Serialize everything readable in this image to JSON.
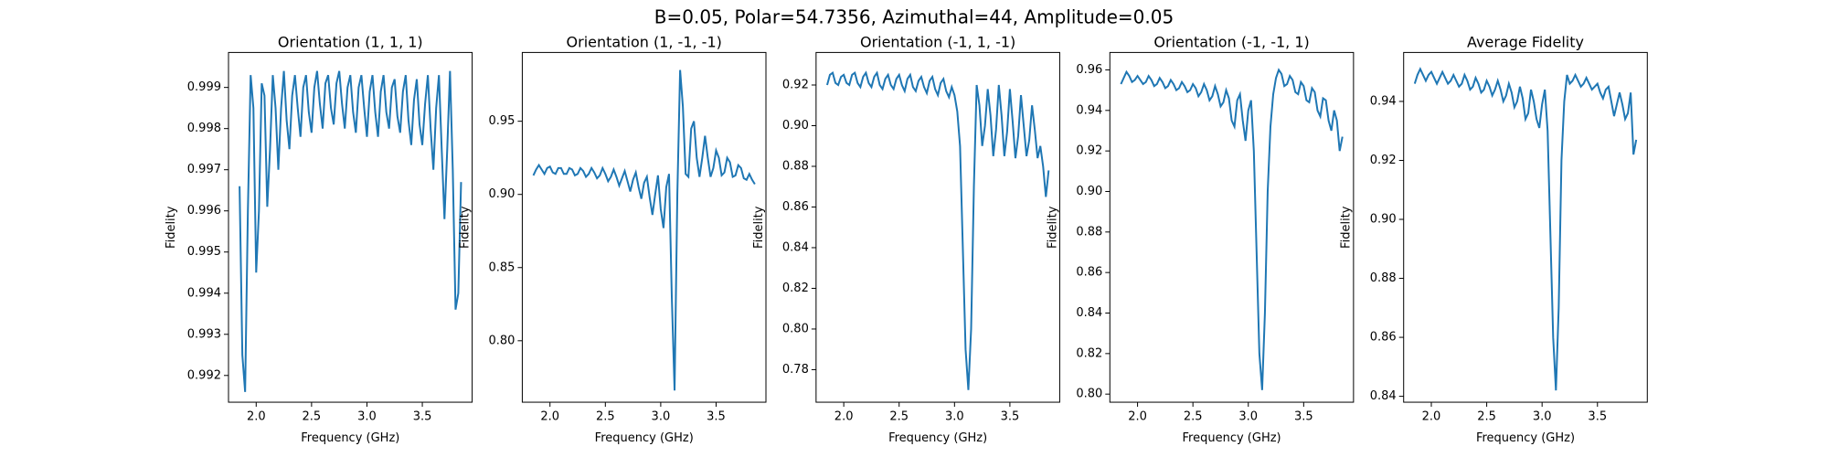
{
  "title": "B=0.05, Polar=54.7356, Azimuthal=44, Amplitude=0.05",
  "chart_data": [
    {
      "type": "line",
      "title": "Orientation (1, 1, 1)",
      "x_label": "Frequency (GHz)",
      "y_label": "Fidelity",
      "color": "#1f77b4",
      "grid": false,
      "x": [
        1.85,
        1.875,
        1.9,
        1.925,
        1.95,
        1.975,
        2,
        2.025,
        2.05,
        2.075,
        2.1,
        2.125,
        2.15,
        2.175,
        2.2,
        2.225,
        2.25,
        2.275,
        2.3,
        2.325,
        2.35,
        2.375,
        2.4,
        2.425,
        2.45,
        2.475,
        2.5,
        2.525,
        2.55,
        2.575,
        2.6,
        2.625,
        2.65,
        2.675,
        2.7,
        2.725,
        2.75,
        2.775,
        2.8,
        2.825,
        2.85,
        2.875,
        2.9,
        2.925,
        2.95,
        2.975,
        3,
        3.025,
        3.05,
        3.075,
        3.1,
        3.125,
        3.15,
        3.175,
        3.2,
        3.225,
        3.25,
        3.275,
        3.3,
        3.325,
        3.35,
        3.375,
        3.4,
        3.425,
        3.45,
        3.475,
        3.5,
        3.525,
        3.55,
        3.575,
        3.6,
        3.625,
        3.65,
        3.675,
        3.7,
        3.725,
        3.75,
        3.775,
        3.8,
        3.825,
        3.85
      ],
      "values": [
        0.9966,
        0.9925,
        0.9916,
        0.996,
        0.9993,
        0.9985,
        0.9945,
        0.996,
        0.9991,
        0.9988,
        0.9961,
        0.9975,
        0.9993,
        0.9985,
        0.997,
        0.9985,
        0.9994,
        0.9982,
        0.9975,
        0.9988,
        0.9993,
        0.9985,
        0.9978,
        0.999,
        0.9993,
        0.9984,
        0.9979,
        0.999,
        0.9994,
        0.9986,
        0.998,
        0.9991,
        0.9993,
        0.9985,
        0.9981,
        0.9991,
        0.9994,
        0.9986,
        0.998,
        0.999,
        0.9993,
        0.9984,
        0.9979,
        0.999,
        0.9993,
        0.9985,
        0.9978,
        0.9989,
        0.9993,
        0.9984,
        0.9978,
        0.9989,
        0.9993,
        0.9984,
        0.998,
        0.999,
        0.9992,
        0.9983,
        0.9979,
        0.9989,
        0.9993,
        0.9982,
        0.9976,
        0.9987,
        0.9992,
        0.9981,
        0.9976,
        0.9986,
        0.9993,
        0.998,
        0.997,
        0.9985,
        0.9993,
        0.9975,
        0.9958,
        0.9975,
        0.9994,
        0.997,
        0.9936,
        0.994,
        0.9967
      ],
      "xlim": [
        1.75,
        3.95
      ],
      "xticks": [
        {
          "value": 2,
          "label": "2.0"
        },
        2.5,
        {
          "value": 3,
          "label": "3.0"
        },
        3.5
      ],
      "ylim": [
        0.99135,
        0.99985
      ],
      "yticks": [
        0.992,
        0.993,
        0.994,
        0.995,
        0.996,
        0.997,
        0.998,
        0.999
      ]
    },
    {
      "type": "line",
      "title": "Orientation (1, -1, -1)",
      "x_label": "Frequency (GHz)",
      "y_label": "Fidelity",
      "color": "#1f77b4",
      "grid": false,
      "x": [
        1.85,
        1.875,
        1.9,
        1.925,
        1.95,
        1.975,
        2,
        2.025,
        2.05,
        2.075,
        2.1,
        2.125,
        2.15,
        2.175,
        2.2,
        2.225,
        2.25,
        2.275,
        2.3,
        2.325,
        2.35,
        2.375,
        2.4,
        2.425,
        2.45,
        2.475,
        2.5,
        2.525,
        2.55,
        2.575,
        2.6,
        2.625,
        2.65,
        2.675,
        2.7,
        2.725,
        2.75,
        2.775,
        2.8,
        2.825,
        2.85,
        2.875,
        2.9,
        2.925,
        2.95,
        2.975,
        3,
        3.025,
        3.05,
        3.075,
        3.1,
        3.125,
        3.15,
        3.175,
        3.2,
        3.225,
        3.25,
        3.275,
        3.3,
        3.325,
        3.35,
        3.375,
        3.4,
        3.425,
        3.45,
        3.475,
        3.5,
        3.525,
        3.55,
        3.575,
        3.6,
        3.625,
        3.65,
        3.675,
        3.7,
        3.725,
        3.75,
        3.775,
        3.8,
        3.825,
        3.85
      ],
      "values": [
        0.913,
        0.917,
        0.92,
        0.917,
        0.914,
        0.918,
        0.919,
        0.915,
        0.914,
        0.918,
        0.918,
        0.914,
        0.914,
        0.918,
        0.917,
        0.913,
        0.914,
        0.918,
        0.916,
        0.912,
        0.914,
        0.918,
        0.915,
        0.911,
        0.913,
        0.918,
        0.914,
        0.909,
        0.912,
        0.917,
        0.912,
        0.906,
        0.911,
        0.916,
        0.909,
        0.902,
        0.91,
        0.915,
        0.905,
        0.897,
        0.908,
        0.912,
        0.898,
        0.886,
        0.9,
        0.913,
        0.89,
        0.877,
        0.905,
        0.914,
        0.83,
        0.766,
        0.9,
        0.985,
        0.96,
        0.914,
        0.912,
        0.945,
        0.95,
        0.925,
        0.912,
        0.925,
        0.94,
        0.925,
        0.912,
        0.918,
        0.93,
        0.925,
        0.913,
        0.915,
        0.925,
        0.922,
        0.912,
        0.913,
        0.92,
        0.918,
        0.911,
        0.91,
        0.914,
        0.91,
        0.907
      ],
      "xlim": [
        1.75,
        3.95
      ],
      "xticks": [
        {
          "value": 2,
          "label": "2.0"
        },
        2.5,
        {
          "value": 3,
          "label": "3.0"
        },
        3.5
      ],
      "ylim": [
        0.758,
        0.997
      ],
      "yticks": [
        {
          "value": 0.8,
          "label": "0.80"
        },
        0.85,
        {
          "value": 0.9,
          "label": "0.90"
        },
        0.95
      ]
    },
    {
      "type": "line",
      "title": "Orientation (-1, 1, -1)",
      "x_label": "Frequency (GHz)",
      "y_label": "Fidelity",
      "color": "#1f77b4",
      "grid": false,
      "x": [
        1.85,
        1.875,
        1.9,
        1.925,
        1.95,
        1.975,
        2,
        2.025,
        2.05,
        2.075,
        2.1,
        2.125,
        2.15,
        2.175,
        2.2,
        2.225,
        2.25,
        2.275,
        2.3,
        2.325,
        2.35,
        2.375,
        2.4,
        2.425,
        2.45,
        2.475,
        2.5,
        2.525,
        2.55,
        2.575,
        2.6,
        2.625,
        2.65,
        2.675,
        2.7,
        2.725,
        2.75,
        2.775,
        2.8,
        2.825,
        2.85,
        2.875,
        2.9,
        2.925,
        2.95,
        2.975,
        3,
        3.025,
        3.05,
        3.075,
        3.1,
        3.125,
        3.15,
        3.175,
        3.2,
        3.225,
        3.25,
        3.275,
        3.3,
        3.325,
        3.35,
        3.375,
        3.4,
        3.425,
        3.45,
        3.475,
        3.5,
        3.525,
        3.55,
        3.575,
        3.6,
        3.625,
        3.65,
        3.675,
        3.7,
        3.725,
        3.75,
        3.775,
        3.8,
        3.825,
        3.85
      ],
      "values": [
        0.92,
        0.925,
        0.926,
        0.921,
        0.92,
        0.924,
        0.925,
        0.921,
        0.92,
        0.925,
        0.926,
        0.921,
        0.919,
        0.924,
        0.926,
        0.921,
        0.919,
        0.924,
        0.926,
        0.92,
        0.918,
        0.923,
        0.925,
        0.92,
        0.918,
        0.923,
        0.925,
        0.92,
        0.917,
        0.923,
        0.925,
        0.919,
        0.917,
        0.922,
        0.924,
        0.919,
        0.916,
        0.922,
        0.924,
        0.918,
        0.915,
        0.921,
        0.923,
        0.917,
        0.914,
        0.919,
        0.915,
        0.907,
        0.89,
        0.84,
        0.79,
        0.77,
        0.8,
        0.87,
        0.92,
        0.91,
        0.89,
        0.9,
        0.918,
        0.905,
        0.885,
        0.898,
        0.92,
        0.905,
        0.885,
        0.897,
        0.918,
        0.902,
        0.884,
        0.895,
        0.915,
        0.9,
        0.885,
        0.893,
        0.91,
        0.898,
        0.884,
        0.89,
        0.88,
        0.865,
        0.878
      ],
      "xlim": [
        1.75,
        3.95
      ],
      "xticks": [
        {
          "value": 2,
          "label": "2.0"
        },
        2.5,
        {
          "value": 3,
          "label": "3.0"
        },
        3.5
      ],
      "ylim": [
        0.764,
        0.936
      ],
      "yticks": [
        0.78,
        {
          "value": 0.8,
          "label": "0.80"
        },
        0.82,
        0.84,
        0.86,
        0.88,
        {
          "value": 0.9,
          "label": "0.90"
        },
        0.92
      ]
    },
    {
      "type": "line",
      "title": "Orientation (-1, -1, 1)",
      "x_label": "Frequency (GHz)",
      "y_label": "Fidelity",
      "color": "#1f77b4",
      "grid": false,
      "x": [
        1.85,
        1.875,
        1.9,
        1.925,
        1.95,
        1.975,
        2,
        2.025,
        2.05,
        2.075,
        2.1,
        2.125,
        2.15,
        2.175,
        2.2,
        2.225,
        2.25,
        2.275,
        2.3,
        2.325,
        2.35,
        2.375,
        2.4,
        2.425,
        2.45,
        2.475,
        2.5,
        2.525,
        2.55,
        2.575,
        2.6,
        2.625,
        2.65,
        2.675,
        2.7,
        2.725,
        2.75,
        2.775,
        2.8,
        2.825,
        2.85,
        2.875,
        2.9,
        2.925,
        2.95,
        2.975,
        3,
        3.025,
        3.05,
        3.075,
        3.1,
        3.125,
        3.15,
        3.175,
        3.2,
        3.225,
        3.25,
        3.275,
        3.3,
        3.325,
        3.35,
        3.375,
        3.4,
        3.425,
        3.45,
        3.475,
        3.5,
        3.525,
        3.55,
        3.575,
        3.6,
        3.625,
        3.65,
        3.675,
        3.7,
        3.725,
        3.75,
        3.775,
        3.8,
        3.825,
        3.85
      ],
      "values": [
        0.953,
        0.956,
        0.959,
        0.957,
        0.954,
        0.955,
        0.957,
        0.955,
        0.953,
        0.954,
        0.957,
        0.955,
        0.952,
        0.953,
        0.956,
        0.954,
        0.951,
        0.952,
        0.955,
        0.953,
        0.95,
        0.951,
        0.954,
        0.952,
        0.949,
        0.95,
        0.953,
        0.951,
        0.947,
        0.949,
        0.953,
        0.95,
        0.945,
        0.947,
        0.952,
        0.948,
        0.942,
        0.944,
        0.95,
        0.946,
        0.935,
        0.932,
        0.945,
        0.948,
        0.935,
        0.925,
        0.94,
        0.945,
        0.92,
        0.87,
        0.82,
        0.802,
        0.84,
        0.9,
        0.932,
        0.948,
        0.956,
        0.96,
        0.958,
        0.952,
        0.953,
        0.957,
        0.955,
        0.949,
        0.948,
        0.954,
        0.952,
        0.945,
        0.944,
        0.951,
        0.949,
        0.94,
        0.937,
        0.946,
        0.945,
        0.935,
        0.93,
        0.94,
        0.935,
        0.92,
        0.927
      ],
      "xlim": [
        1.75,
        3.95
      ],
      "xticks": [
        {
          "value": 2,
          "label": "2.0"
        },
        2.5,
        {
          "value": 3,
          "label": "3.0"
        },
        3.5
      ],
      "ylim": [
        0.796,
        0.9686
      ],
      "yticks": [
        {
          "value": 0.8,
          "label": "0.80"
        },
        0.82,
        0.84,
        0.86,
        0.88,
        {
          "value": 0.9,
          "label": "0.90"
        },
        0.92,
        0.94,
        0.96
      ]
    },
    {
      "type": "line",
      "title": "Average Fidelity",
      "x_label": "Frequency (GHz)",
      "y_label": "Fidelity",
      "color": "#1f77b4",
      "grid": false,
      "x": [
        1.85,
        1.875,
        1.9,
        1.925,
        1.95,
        1.975,
        2,
        2.025,
        2.05,
        2.075,
        2.1,
        2.125,
        2.15,
        2.175,
        2.2,
        2.225,
        2.25,
        2.275,
        2.3,
        2.325,
        2.35,
        2.375,
        2.4,
        2.425,
        2.45,
        2.475,
        2.5,
        2.525,
        2.55,
        2.575,
        2.6,
        2.625,
        2.65,
        2.675,
        2.7,
        2.725,
        2.75,
        2.775,
        2.8,
        2.825,
        2.85,
        2.875,
        2.9,
        2.925,
        2.95,
        2.975,
        3,
        3.025,
        3.05,
        3.075,
        3.1,
        3.125,
        3.15,
        3.175,
        3.2,
        3.225,
        3.25,
        3.275,
        3.3,
        3.325,
        3.35,
        3.375,
        3.4,
        3.425,
        3.45,
        3.475,
        3.5,
        3.525,
        3.55,
        3.575,
        3.6,
        3.625,
        3.65,
        3.675,
        3.7,
        3.725,
        3.75,
        3.775,
        3.8,
        3.825,
        3.85
      ],
      "values": [
        0.946,
        0.949,
        0.951,
        0.949,
        0.947,
        0.949,
        0.95,
        0.948,
        0.946,
        0.948,
        0.95,
        0.948,
        0.946,
        0.947,
        0.949,
        0.947,
        0.945,
        0.946,
        0.949,
        0.947,
        0.944,
        0.945,
        0.948,
        0.946,
        0.943,
        0.944,
        0.947,
        0.945,
        0.942,
        0.944,
        0.947,
        0.944,
        0.94,
        0.942,
        0.946,
        0.943,
        0.938,
        0.94,
        0.945,
        0.941,
        0.934,
        0.936,
        0.944,
        0.94,
        0.934,
        0.931,
        0.939,
        0.944,
        0.93,
        0.895,
        0.86,
        0.842,
        0.87,
        0.92,
        0.94,
        0.949,
        0.946,
        0.947,
        0.949,
        0.947,
        0.945,
        0.946,
        0.948,
        0.946,
        0.944,
        0.945,
        0.946,
        0.943,
        0.941,
        0.944,
        0.945,
        0.94,
        0.935,
        0.939,
        0.943,
        0.939,
        0.934,
        0.936,
        0.943,
        0.922,
        0.927
      ],
      "xlim": [
        1.75,
        3.95
      ],
      "xticks": [
        {
          "value": 2,
          "label": "2.0"
        },
        2.5,
        {
          "value": 3,
          "label": "3.0"
        },
        3.5
      ],
      "ylim": [
        0.838,
        0.9566
      ],
      "yticks": [
        0.84,
        0.86,
        0.88,
        {
          "value": 0.9,
          "label": "0.90"
        },
        0.92,
        0.94
      ]
    }
  ]
}
